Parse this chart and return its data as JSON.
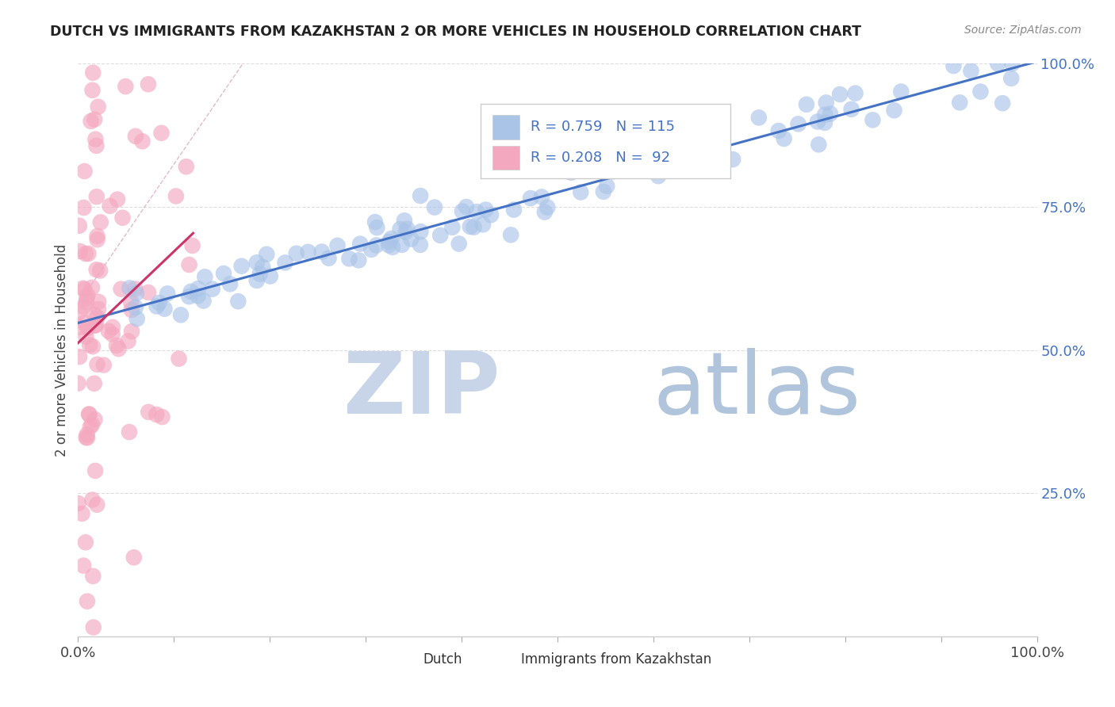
{
  "title": "DUTCH VS IMMIGRANTS FROM KAZAKHSTAN 2 OR MORE VEHICLES IN HOUSEHOLD CORRELATION CHART",
  "source": "Source: ZipAtlas.com",
  "ylabel": "2 or more Vehicles in Household",
  "xlim": [
    0,
    1.0
  ],
  "ylim": [
    0,
    1.0
  ],
  "ytick_vals": [
    0.25,
    0.5,
    0.75,
    1.0
  ],
  "ytick_labels": [
    "25.0%",
    "50.0%",
    "75.0%",
    "100.0%"
  ],
  "xtick_vals": [
    0.0,
    1.0
  ],
  "xtick_labels": [
    "0.0%",
    "100.0%"
  ],
  "dutch_color": "#aac4e8",
  "kazakh_color": "#f4a8c0",
  "trend_dutch_color": "#4472c4",
  "trend_kazakh_color": "#cc3366",
  "diagonal_color": "#d8a8c0",
  "watermark_zip_color": "#c8d4e8",
  "watermark_atlas_color": "#b0c4dc",
  "dutch_R": 0.759,
  "dutch_N": 115,
  "kazakh_R": 0.208,
  "kazakh_N": 92,
  "title_color": "#222222",
  "source_color": "#888888",
  "axis_label_color": "#444444",
  "tick_color_right": "#4472c4",
  "legend_rn_color": "#4472c4",
  "background_color": "#ffffff",
  "grid_color": "#dddddd",
  "legend_box_color": "#cccccc",
  "bottom_legend_label1": "Dutch",
  "bottom_legend_label2": "Immigrants from Kazakhstan"
}
